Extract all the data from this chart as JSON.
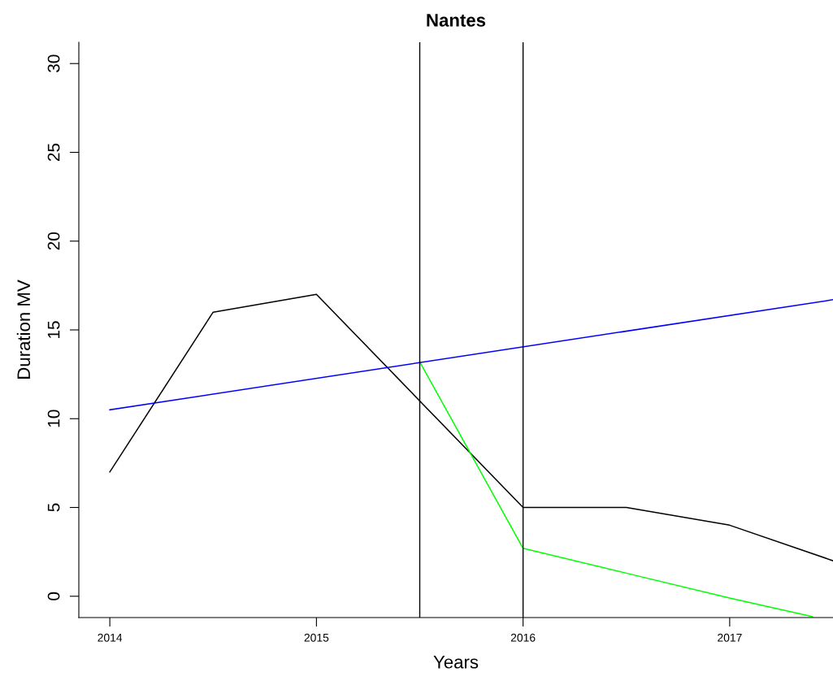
{
  "chart_data": {
    "type": "line",
    "title": "Nantes",
    "xlabel": "Years",
    "ylabel": "Duration MV",
    "series": [
      {
        "color": "#000000",
        "x": [
          2014,
          2014.5,
          2015,
          2015.5,
          2016,
          2016.5,
          2017,
          2017.5
        ],
        "values": [
          7,
          16,
          17,
          11,
          5,
          5,
          4,
          2
        ]
      },
      {
        "color": "#00ff00",
        "x": [
          2015.5,
          2016,
          2016.5,
          2017,
          2017.4
        ],
        "values": [
          13.2,
          2.7,
          1.3,
          -0.1,
          -1.15
        ]
      },
      {
        "color": "#0000ff",
        "x": [
          2014,
          2017.5
        ],
        "values": [
          10.5,
          16.7
        ]
      }
    ],
    "xlim": [
      2013.85,
      2017.5
    ],
    "ylim": [
      -1.2,
      31.2
    ],
    "xticks": [
      2014,
      2015,
      2016,
      2017
    ],
    "yticks": [
      0,
      5,
      10,
      15,
      20,
      25,
      30
    ],
    "ref_lines": [
      {
        "axis": "x",
        "value": 2015.5,
        "color": "#000000"
      },
      {
        "axis": "x",
        "value": 2016,
        "color": "#000000"
      }
    ],
    "grid": false,
    "legend": false,
    "marker": "none",
    "line_style": "solid"
  }
}
